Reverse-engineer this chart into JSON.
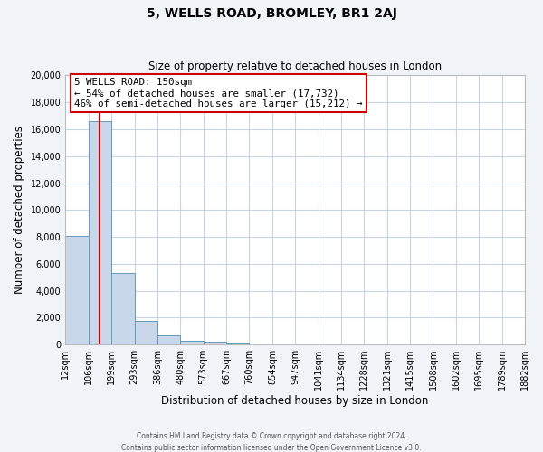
{
  "title": "5, WELLS ROAD, BROMLEY, BR1 2AJ",
  "subtitle": "Size of property relative to detached houses in London",
  "xlabel": "Distribution of detached houses by size in London",
  "ylabel": "Number of detached properties",
  "bar_edges": [
    12,
    106,
    199,
    293,
    386,
    480,
    573,
    667,
    760,
    854,
    947,
    1041,
    1134,
    1228,
    1321,
    1415,
    1508,
    1602,
    1695,
    1789,
    1882
  ],
  "bar_heights": [
    8100,
    16600,
    5300,
    1750,
    700,
    300,
    200,
    150,
    0,
    0,
    0,
    0,
    0,
    0,
    0,
    0,
    0,
    0,
    0,
    0
  ],
  "bar_color": "#c8d8ea",
  "bar_edge_color": "#6699bb",
  "grid_color": "#c8d5e2",
  "background_color": "#ffffff",
  "fig_background_color": "#f0f4f8",
  "vline_x": 150,
  "vline_color": "#cc0000",
  "annotation_title": "5 WELLS ROAD: 150sqm",
  "annotation_line1": "← 54% of detached houses are smaller (17,732)",
  "annotation_line2": "46% of semi-detached houses are larger (15,212) →",
  "annotation_box_facecolor": "#ffffff",
  "annotation_box_edgecolor": "#cc0000",
  "ylim": [
    0,
    20000
  ],
  "yticks": [
    0,
    2000,
    4000,
    6000,
    8000,
    10000,
    12000,
    14000,
    16000,
    18000,
    20000
  ],
  "xtick_labels": [
    "12sqm",
    "106sqm",
    "199sqm",
    "293sqm",
    "386sqm",
    "480sqm",
    "573sqm",
    "667sqm",
    "760sqm",
    "854sqm",
    "947sqm",
    "1041sqm",
    "1134sqm",
    "1228sqm",
    "1321sqm",
    "1415sqm",
    "1508sqm",
    "1602sqm",
    "1695sqm",
    "1789sqm",
    "1882sqm"
  ],
  "footer_line1": "Contains HM Land Registry data © Crown copyright and database right 2024.",
  "footer_line2": "Contains public sector information licensed under the Open Government Licence v3.0."
}
